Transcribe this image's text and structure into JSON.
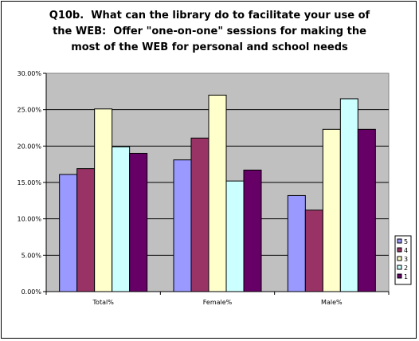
{
  "chart_data": {
    "type": "bar",
    "title_lines": [
      "Q10b.  What can the library do to facilitate your use of",
      "the WEB:  Offer \"one-on-one\" sessions for making the",
      "most of the WEB for personal and school needs"
    ],
    "categories": [
      "Total%",
      "Female%",
      "Male%"
    ],
    "series": [
      {
        "name": "5",
        "color": "#9999ff",
        "values": [
          16.1,
          18.1,
          13.2
        ]
      },
      {
        "name": "4",
        "color": "#993366",
        "values": [
          16.9,
          21.1,
          11.2
        ]
      },
      {
        "name": "3",
        "color": "#ffffcc",
        "values": [
          25.1,
          27.0,
          22.3
        ]
      },
      {
        "name": "2",
        "color": "#ccffff",
        "values": [
          19.9,
          15.2,
          26.5
        ]
      },
      {
        "name": "1",
        "color": "#660066",
        "values": [
          19.0,
          16.7,
          22.3
        ]
      }
    ],
    "ylim": [
      0,
      30
    ],
    "yticks": [
      "0.00%",
      "5.00%",
      "10.00%",
      "15.00%",
      "20.00%",
      "25.00%",
      "30.00%"
    ],
    "grid": true,
    "plot_background": "#c0c0c0",
    "legend_position": "right",
    "legend_order": [
      "5",
      "4",
      "3",
      "2",
      "1"
    ]
  }
}
